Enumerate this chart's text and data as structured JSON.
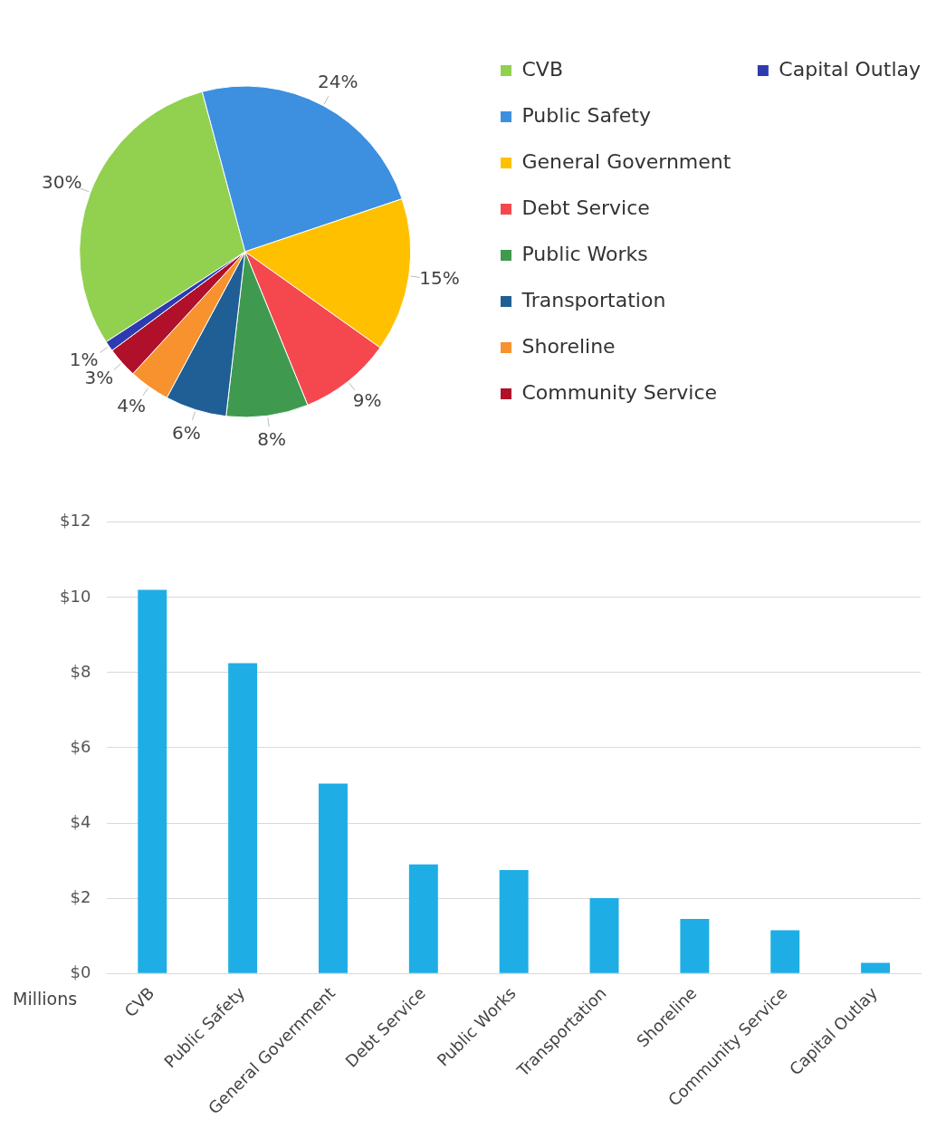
{
  "chart_data": [
    {
      "type": "pie",
      "categories": [
        "CVB",
        "Public Safety",
        "General Government",
        "Debt Service",
        "Public Works",
        "Transportation",
        "Shoreline",
        "Community Service",
        "Capital Outlay"
      ],
      "values": [
        30,
        24,
        15,
        9,
        8,
        6,
        4,
        3,
        1
      ],
      "value_labels": [
        "30%",
        "24%",
        "15%",
        "9%",
        "8%",
        "6%",
        "4%",
        "3%",
        "1%"
      ],
      "colors": [
        "#92d050",
        "#3d8fe0",
        "#ffc000",
        "#f5484e",
        "#3f9a4f",
        "#1f5f96",
        "#f7922e",
        "#b0102a",
        "#2e3ab0"
      ],
      "legend": "right"
    },
    {
      "type": "bar",
      "categories": [
        "CVB",
        "Public Safety",
        "General Government",
        "Debt Service",
        "Public Works",
        "Transportation",
        "Shoreline",
        "Community Service",
        "Capital Outlay"
      ],
      "values": [
        10.2,
        8.25,
        5.05,
        2.9,
        2.75,
        2.0,
        1.45,
        1.15,
        0.28
      ],
      "color": "#1eaee5",
      "ylabel": "Millions",
      "ylim": [
        0,
        12
      ],
      "yticks": [
        {
          "value": 0,
          "label": "$0"
        },
        {
          "value": 2,
          "label": "$2"
        },
        {
          "value": 4,
          "label": "$4"
        },
        {
          "value": 6,
          "label": "$6"
        },
        {
          "value": 8,
          "label": "$8"
        },
        {
          "value": 10,
          "label": "$10"
        },
        {
          "value": 12,
          "label": "$12"
        }
      ],
      "grid": "y",
      "legend": false
    }
  ]
}
